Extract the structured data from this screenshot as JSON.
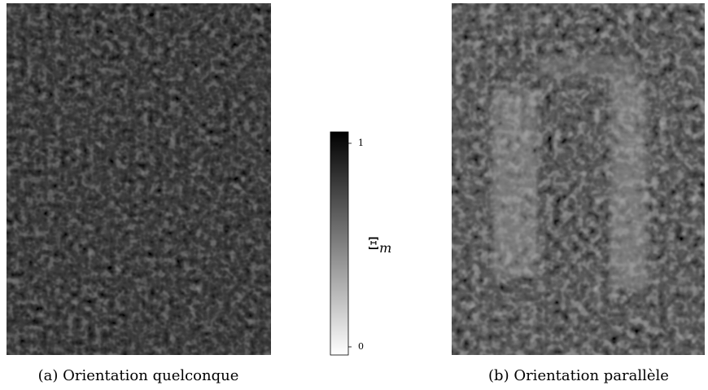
{
  "panels": [
    {
      "caption": "(a) Orientation quelconque"
    },
    {
      "caption": "(b) Orientation parallèle"
    }
  ],
  "colorbar": {
    "label": "Ξ",
    "label_sub": "m",
    "ticks": [
      0,
      1
    ]
  }
}
